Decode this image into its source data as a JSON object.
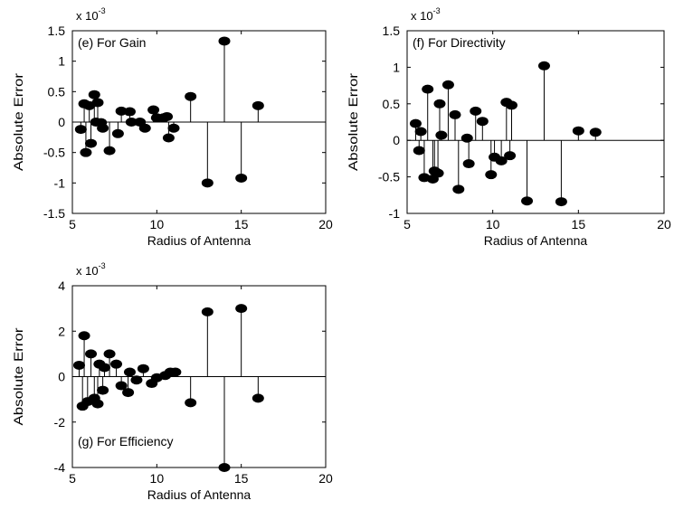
{
  "chart_data": [
    {
      "type": "stem",
      "annotation": "(e) For Gain",
      "xlabel": "Radius of Antenna",
      "ylabel": "Absolute Error",
      "multiplier": {
        "base": "x 10",
        "exponent": "-3"
      },
      "xlim": [
        5,
        20
      ],
      "ylim": [
        -1.5,
        1.5
      ],
      "xticks": [
        5,
        10,
        15,
        20
      ],
      "yticks": [
        -1.5,
        -1,
        -0.5,
        0,
        0.5,
        1,
        1.5
      ],
      "xtick_labels": [
        "5",
        "10",
        "15",
        "20"
      ],
      "ytick_labels": [
        "-1.5",
        "-1",
        "-0.5",
        "0",
        "0.5",
        "1",
        "1.5"
      ],
      "points": [
        [
          5.5,
          -0.12
        ],
        [
          5.7,
          0.3
        ],
        [
          5.8,
          -0.5
        ],
        [
          6.0,
          0.27
        ],
        [
          6.1,
          -0.35
        ],
        [
          6.3,
          0.45
        ],
        [
          6.4,
          0.0
        ],
        [
          6.5,
          0.32
        ],
        [
          6.7,
          -0.01
        ],
        [
          6.8,
          -0.1
        ],
        [
          7.2,
          -0.47
        ],
        [
          7.7,
          -0.19
        ],
        [
          7.9,
          0.18
        ],
        [
          8.4,
          0.17
        ],
        [
          8.5,
          0.0
        ],
        [
          9.0,
          0.0
        ],
        [
          9.3,
          -0.1
        ],
        [
          9.8,
          0.2
        ],
        [
          10.0,
          0.07
        ],
        [
          10.4,
          0.07
        ],
        [
          10.6,
          0.09
        ],
        [
          10.7,
          -0.26
        ],
        [
          11.0,
          -0.1
        ],
        [
          12.0,
          0.42
        ],
        [
          13.0,
          -1.0
        ],
        [
          14.0,
          1.33
        ],
        [
          15.0,
          -0.92
        ],
        [
          16.0,
          0.27
        ]
      ]
    },
    {
      "type": "stem",
      "annotation": "(f) For Directivity",
      "xlabel": "Radius of Antenna",
      "ylabel": "Absolute Error",
      "multiplier": {
        "base": "x 10",
        "exponent": "-3"
      },
      "xlim": [
        5,
        20
      ],
      "ylim": [
        -1,
        1.5
      ],
      "xticks": [
        5,
        10,
        15,
        20
      ],
      "yticks": [
        -1,
        -0.5,
        0,
        0.5,
        1,
        1.5
      ],
      "xtick_labels": [
        "5",
        "10",
        "15",
        "20"
      ],
      "ytick_labels": [
        "-1",
        "-0.5",
        "0",
        "0.5",
        "1",
        "1.5"
      ],
      "points": [
        [
          5.5,
          0.23
        ],
        [
          5.7,
          -0.14
        ],
        [
          5.8,
          0.12
        ],
        [
          6.0,
          -0.51
        ],
        [
          6.2,
          0.7
        ],
        [
          6.5,
          -0.53
        ],
        [
          6.6,
          -0.42
        ],
        [
          6.8,
          -0.45
        ],
        [
          6.9,
          0.5
        ],
        [
          7.0,
          0.07
        ],
        [
          7.4,
          0.76
        ],
        [
          7.8,
          0.35
        ],
        [
          8.0,
          -0.67
        ],
        [
          8.5,
          0.03
        ],
        [
          8.6,
          -0.32
        ],
        [
          9.0,
          0.4
        ],
        [
          9.4,
          0.26
        ],
        [
          9.9,
          -0.47
        ],
        [
          10.1,
          -0.23
        ],
        [
          10.5,
          -0.28
        ],
        [
          10.8,
          0.52
        ],
        [
          11.0,
          -0.21
        ],
        [
          11.1,
          0.48
        ],
        [
          12.0,
          -0.83
        ],
        [
          13.0,
          1.02
        ],
        [
          14.0,
          -0.84
        ],
        [
          15.0,
          0.13
        ],
        [
          16.0,
          0.11
        ]
      ]
    },
    {
      "type": "stem",
      "annotation": "(g) For Efficiency",
      "xlabel": "Radius of Antenna",
      "ylabel": "Absolute Error",
      "multiplier": {
        "base": "x 10",
        "exponent": "-3"
      },
      "xlim": [
        5,
        20
      ],
      "ylim": [
        -4,
        4
      ],
      "xticks": [
        5,
        10,
        15,
        20
      ],
      "yticks": [
        -4,
        -2,
        0,
        2,
        4
      ],
      "xtick_labels": [
        "5",
        "10",
        "15",
        "20"
      ],
      "ytick_labels": [
        "-4",
        "-2",
        "0",
        "2",
        "4"
      ],
      "points": [
        [
          5.4,
          0.5
        ],
        [
          5.6,
          -1.3
        ],
        [
          5.7,
          1.8
        ],
        [
          5.9,
          -1.1
        ],
        [
          6.1,
          1.0
        ],
        [
          6.3,
          -0.95
        ],
        [
          6.5,
          -1.2
        ],
        [
          6.6,
          0.55
        ],
        [
          6.8,
          -0.6
        ],
        [
          6.9,
          0.4
        ],
        [
          7.2,
          1.0
        ],
        [
          7.6,
          0.55
        ],
        [
          7.9,
          -0.4
        ],
        [
          8.3,
          -0.7
        ],
        [
          8.4,
          0.2
        ],
        [
          8.8,
          -0.15
        ],
        [
          9.2,
          0.35
        ],
        [
          9.7,
          -0.3
        ],
        [
          10.0,
          -0.05
        ],
        [
          10.5,
          0.05
        ],
        [
          10.8,
          0.2
        ],
        [
          11.1,
          0.2
        ],
        [
          12.0,
          -1.15
        ],
        [
          13.0,
          2.85
        ],
        [
          14.0,
          -4.0
        ],
        [
          15.0,
          3.0
        ],
        [
          16.0,
          -0.95
        ]
      ]
    }
  ]
}
